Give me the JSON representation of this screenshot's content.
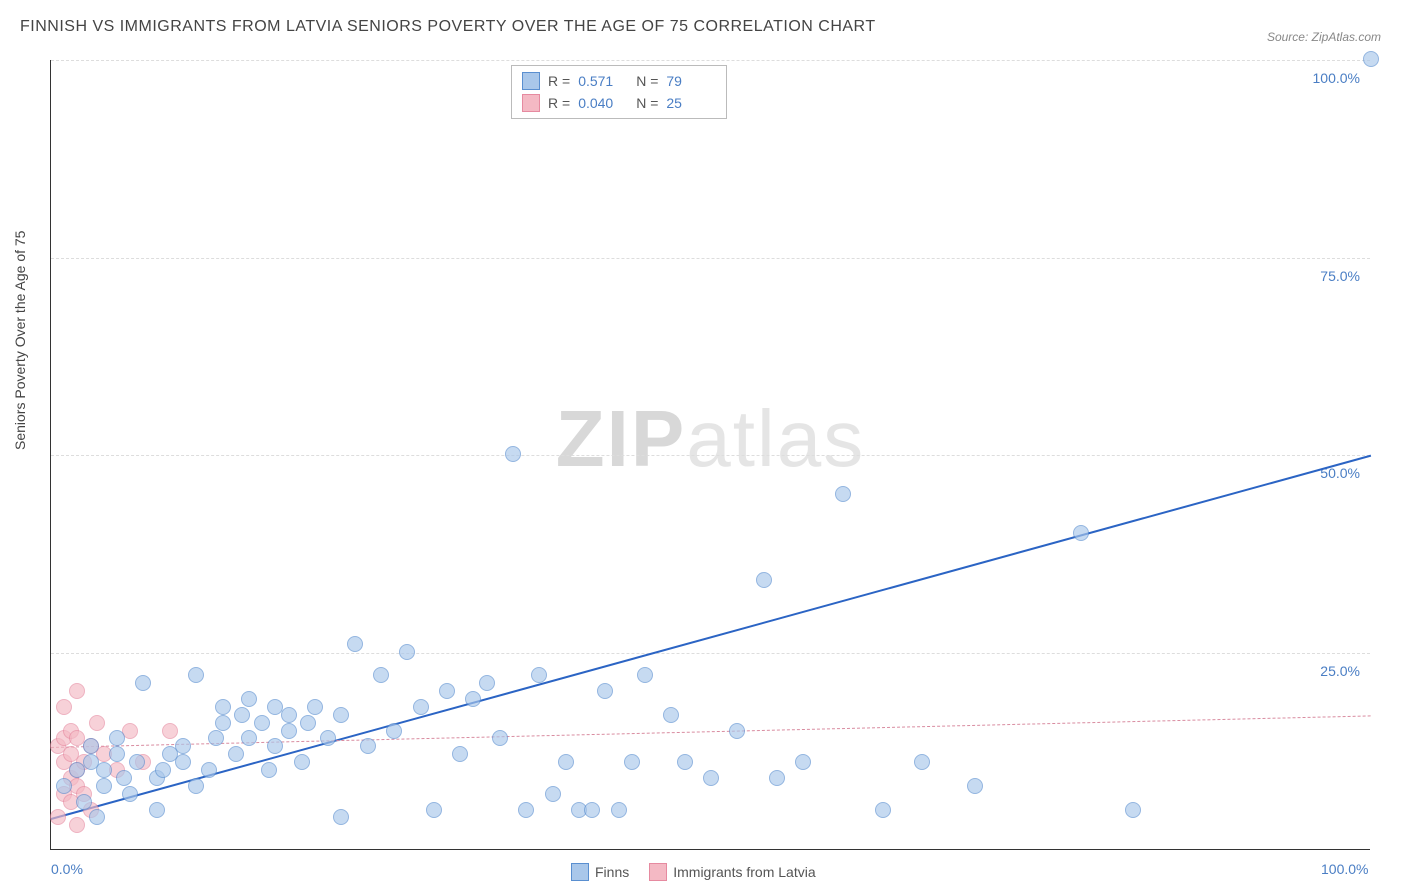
{
  "title": "FINNISH VS IMMIGRANTS FROM LATVIA SENIORS POVERTY OVER THE AGE OF 75 CORRELATION CHART",
  "source": "Source: ZipAtlas.com",
  "watermark_bold": "ZIP",
  "watermark_light": "atlas",
  "ylabel": "Seniors Poverty Over the Age of 75",
  "chart": {
    "type": "scatter",
    "xlim": [
      0,
      100
    ],
    "ylim": [
      0,
      100
    ],
    "xticks": [
      {
        "v": 0,
        "label": "0.0%"
      },
      {
        "v": 100,
        "label": "100.0%"
      }
    ],
    "yticks": [
      {
        "v": 25,
        "label": "25.0%"
      },
      {
        "v": 50,
        "label": "50.0%"
      },
      {
        "v": 75,
        "label": "75.0%"
      },
      {
        "v": 100,
        "label": "100.0%"
      }
    ],
    "grid_color": "#dddddd",
    "background_color": "#ffffff",
    "point_radius": 8,
    "series": [
      {
        "name": "Finns",
        "fill": "#a9c7ea",
        "stroke": "#5a8fd0",
        "fill_opacity": 0.65,
        "R": "0.571",
        "N": "79",
        "trend": {
          "x1": 0,
          "y1": 4,
          "x2": 100,
          "y2": 50,
          "color": "#2b64c4",
          "width": 2.5,
          "dash": "solid"
        },
        "points": [
          [
            1,
            8
          ],
          [
            2,
            10
          ],
          [
            2.5,
            6
          ],
          [
            3,
            11
          ],
          [
            3,
            13
          ],
          [
            3.5,
            4
          ],
          [
            4,
            8
          ],
          [
            4,
            10
          ],
          [
            5,
            12
          ],
          [
            5,
            14
          ],
          [
            5.5,
            9
          ],
          [
            6,
            7
          ],
          [
            6.5,
            11
          ],
          [
            7,
            21
          ],
          [
            8,
            5
          ],
          [
            8,
            9
          ],
          [
            8.5,
            10
          ],
          [
            9,
            12
          ],
          [
            10,
            11
          ],
          [
            10,
            13
          ],
          [
            11,
            8
          ],
          [
            11,
            22
          ],
          [
            12,
            10
          ],
          [
            12.5,
            14
          ],
          [
            13,
            16
          ],
          [
            13,
            18
          ],
          [
            14,
            12
          ],
          [
            14.5,
            17
          ],
          [
            15,
            14
          ],
          [
            15,
            19
          ],
          [
            16,
            16
          ],
          [
            16.5,
            10
          ],
          [
            17,
            13
          ],
          [
            17,
            18
          ],
          [
            18,
            15
          ],
          [
            18,
            17
          ],
          [
            19,
            11
          ],
          [
            19.5,
            16
          ],
          [
            20,
            18
          ],
          [
            21,
            14
          ],
          [
            22,
            4
          ],
          [
            22,
            17
          ],
          [
            23,
            26
          ],
          [
            24,
            13
          ],
          [
            25,
            22
          ],
          [
            26,
            15
          ],
          [
            27,
            25
          ],
          [
            28,
            18
          ],
          [
            29,
            5
          ],
          [
            30,
            20
          ],
          [
            31,
            12
          ],
          [
            32,
            19
          ],
          [
            33,
            21
          ],
          [
            34,
            14
          ],
          [
            35,
            50
          ],
          [
            36,
            5
          ],
          [
            37,
            22
          ],
          [
            38,
            7
          ],
          [
            39,
            11
          ],
          [
            40,
            5
          ],
          [
            41,
            5
          ],
          [
            42,
            20
          ],
          [
            43,
            5
          ],
          [
            44,
            11
          ],
          [
            45,
            22
          ],
          [
            47,
            17
          ],
          [
            48,
            11
          ],
          [
            50,
            9
          ],
          [
            52,
            15
          ],
          [
            54,
            34
          ],
          [
            55,
            9
          ],
          [
            57,
            11
          ],
          [
            60,
            45
          ],
          [
            63,
            5
          ],
          [
            66,
            11
          ],
          [
            70,
            8
          ],
          [
            78,
            40
          ],
          [
            82,
            5
          ],
          [
            100,
            100
          ]
        ]
      },
      {
        "name": "Immigrants from Latvia",
        "fill": "#f4b9c4",
        "stroke": "#e68aa0",
        "fill_opacity": 0.65,
        "R": "0.040",
        "N": "25",
        "trend": {
          "x1": 0,
          "y1": 13,
          "x2": 100,
          "y2": 17,
          "color": "#d98ca0",
          "width": 1.5,
          "dash": "dashed"
        },
        "points": [
          [
            0.5,
            4
          ],
          [
            0.5,
            13
          ],
          [
            1,
            7
          ],
          [
            1,
            11
          ],
          [
            1,
            14
          ],
          [
            1,
            18
          ],
          [
            1.5,
            6
          ],
          [
            1.5,
            9
          ],
          [
            1.5,
            12
          ],
          [
            1.5,
            15
          ],
          [
            2,
            3
          ],
          [
            2,
            8
          ],
          [
            2,
            10
          ],
          [
            2,
            14
          ],
          [
            2,
            20
          ],
          [
            2.5,
            7
          ],
          [
            2.5,
            11
          ],
          [
            3,
            5
          ],
          [
            3,
            13
          ],
          [
            3.5,
            16
          ],
          [
            4,
            12
          ],
          [
            5,
            10
          ],
          [
            6,
            15
          ],
          [
            7,
            11
          ],
          [
            9,
            15
          ]
        ]
      }
    ]
  },
  "bottom_legend": [
    {
      "label": "Finns",
      "fill": "#a9c7ea",
      "stroke": "#5a8fd0"
    },
    {
      "label": "Immigrants from Latvia",
      "fill": "#f4b9c4",
      "stroke": "#e68aa0"
    }
  ]
}
